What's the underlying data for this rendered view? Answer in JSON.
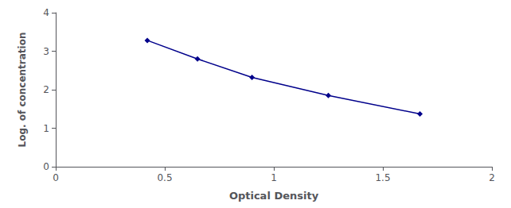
{
  "chart_data": {
    "type": "line",
    "x": [
      0.42,
      0.65,
      0.9,
      1.25,
      1.67
    ],
    "values": [
      3.28,
      2.8,
      2.32,
      1.85,
      1.37
    ],
    "color": "#00008B",
    "marker": "diamond",
    "line_style": "solid",
    "xlabel": "Optical Density",
    "ylabel": "Log. of concentration",
    "xlim": [
      0,
      2
    ],
    "ylim": [
      0,
      4
    ],
    "xticks": [
      0,
      0.5,
      1,
      1.5,
      2
    ],
    "yticks": [
      0,
      1,
      2,
      3,
      4
    ],
    "grid": false
  }
}
